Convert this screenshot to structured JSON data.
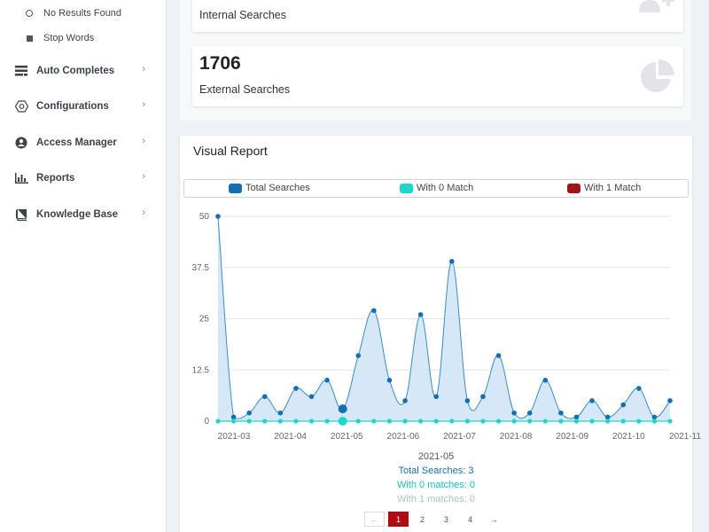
{
  "sidebar": {
    "sub_items": [
      {
        "label": "No Results Found",
        "icon": "circle-outline-icon"
      },
      {
        "label": "Stop Words",
        "icon": "square-icon"
      }
    ],
    "items": [
      {
        "label": "Auto Completes",
        "icon": "list-icon",
        "chevron": "›"
      },
      {
        "label": "Configurations",
        "icon": "hexagon-gear-icon",
        "chevron": "›"
      },
      {
        "label": "Access Manager",
        "icon": "user-shield-icon",
        "chevron": "›"
      },
      {
        "label": "Reports",
        "icon": "bar-chart-icon",
        "chevron": "›"
      },
      {
        "label": "Knowledge Base",
        "icon": "book-icon",
        "chevron": "›"
      }
    ]
  },
  "stats": [
    {
      "value": "",
      "label": "Internal Searches",
      "icon": "user-plus-icon"
    },
    {
      "value": "1706",
      "label": "External Searches",
      "icon": "pie-chart-icon"
    }
  ],
  "report": {
    "title": "Visual Report",
    "tooltip": {
      "date": "2021-05",
      "total": "Total Searches: 3",
      "zero": "With 0 matches: 0",
      "one": "With 1 matches: 0"
    },
    "pagination": {
      "prev": "←",
      "next": "→",
      "pages": [
        "1",
        "2",
        "3",
        "4"
      ],
      "active_page": "1"
    }
  },
  "colors": {
    "total": "#1170b4",
    "zero": "#1fd6cc",
    "one": "#a3131a",
    "area_fill": "#cfe4f6"
  },
  "chart_data": {
    "type": "area",
    "x_ticks": [
      "2021-03",
      "2021-04",
      "2021-05",
      "2021-06",
      "2021-07",
      "2021-08",
      "2021-09",
      "2021-10",
      "2021-11"
    ],
    "y_ticks": [
      "0",
      "12.5",
      "25",
      "37.5",
      "50"
    ],
    "ylim": [
      0,
      50
    ],
    "series": [
      {
        "name": "Total Searches",
        "values": [
          50,
          1,
          2,
          6,
          2,
          8,
          6,
          10,
          3,
          16,
          27,
          10,
          5,
          26,
          6,
          39,
          5,
          6,
          16,
          2,
          2,
          10,
          2,
          1,
          5,
          1,
          4,
          8,
          1,
          5
        ]
      },
      {
        "name": "With 0 Match",
        "values": [
          0,
          0,
          0,
          0,
          0,
          0,
          0,
          0,
          0,
          0,
          0,
          0,
          0,
          0,
          0,
          0,
          0,
          0,
          0,
          0,
          0,
          0,
          0,
          0,
          0,
          0,
          0,
          0,
          0,
          0
        ]
      },
      {
        "name": "With 1 Match",
        "values": [
          0,
          0,
          0,
          0,
          0,
          0,
          0,
          0,
          0,
          0,
          0,
          0,
          0,
          0,
          0,
          0,
          0,
          0,
          0,
          0,
          0,
          0,
          0,
          0,
          0,
          0,
          0,
          0,
          0,
          0
        ]
      }
    ],
    "highlighted_index": 8,
    "grid": true,
    "legend_position": "top"
  }
}
